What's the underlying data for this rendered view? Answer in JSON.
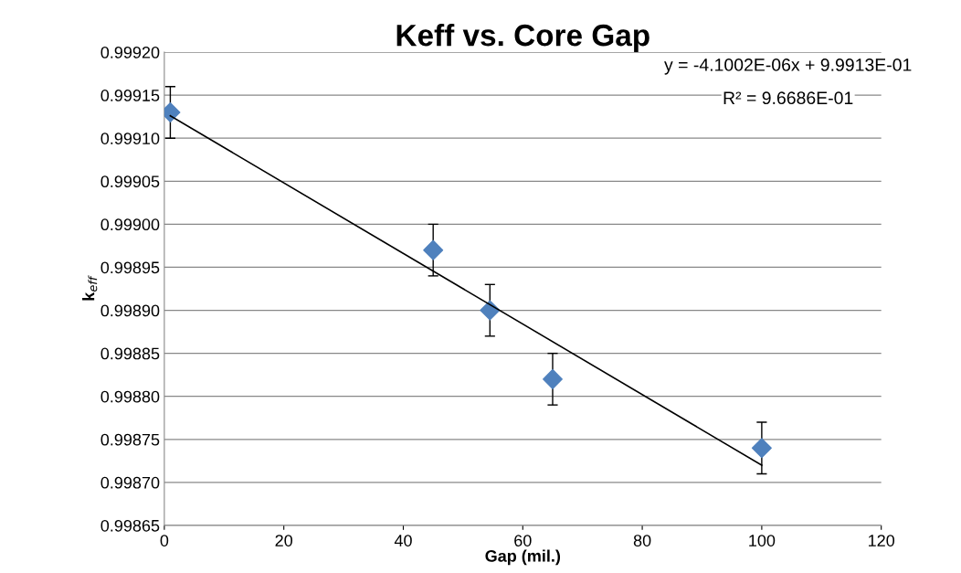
{
  "chart_data": {
    "type": "scatter",
    "title": "Keff vs. Core Gap",
    "xlabel": "Gap (mil.)",
    "ylabel": "k$_{eff}$",
    "annotations": [
      "y = -4.1002E-06x + 9.9913E-01",
      "R² = 9.6686E-01"
    ],
    "x": [
      1,
      45,
      54.5,
      65,
      100
    ],
    "series": [
      {
        "color": "#4f81bd",
        "values": [
          0.99913,
          0.99897,
          0.9989,
          0.99882,
          0.99874
        ],
        "errors": [
          3e-05,
          3e-05,
          3e-05,
          3e-05,
          3e-05
        ],
        "marker": "diamond"
      },
      {
        "type": "line",
        "color": "#000000",
        "x": [
          1,
          100
        ],
        "values": [
          0.999126,
          0.99872
        ],
        "line_style": "solid",
        "marker": "none"
      }
    ],
    "xlim": [
      0,
      120
    ],
    "xticks": [
      0,
      20,
      40,
      60,
      80,
      100,
      120
    ],
    "ylim": [
      0.99865,
      0.9992
    ],
    "yticks": [
      {
        "value": 0.99865,
        "label": "0.99865"
      },
      {
        "value": 0.9987,
        "label": "0.99870"
      },
      {
        "value": 0.99875,
        "label": "0.99875"
      },
      {
        "value": 0.9988,
        "label": "0.99880"
      },
      {
        "value": 0.99885,
        "label": "0.99885"
      },
      {
        "value": 0.9989,
        "label": "0.99890"
      },
      {
        "value": 0.99895,
        "label": "0.99895"
      },
      {
        "value": 0.999,
        "label": "0.99900"
      },
      {
        "value": 0.99905,
        "label": "0.99905"
      },
      {
        "value": 0.9991,
        "label": "0.99910"
      },
      {
        "value": 0.99915,
        "label": "0.99915"
      },
      {
        "value": 0.9992,
        "label": "0.99920"
      }
    ],
    "grid": "y"
  }
}
